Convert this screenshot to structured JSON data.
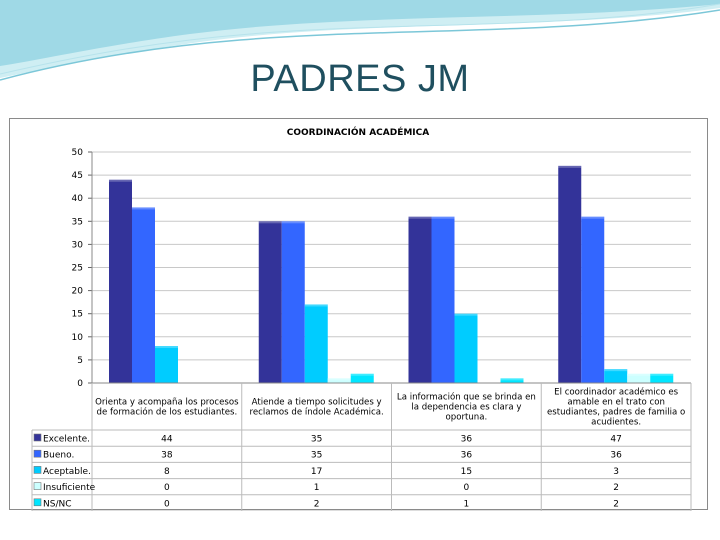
{
  "slide": {
    "title": "PADRES JM"
  },
  "chart_data": {
    "type": "bar",
    "title": "COORDINACIÓN ACADÉMICA",
    "xlabel": "",
    "ylabel": "",
    "ylim": [
      0,
      50
    ],
    "yticks": [
      0,
      5,
      10,
      15,
      20,
      25,
      30,
      35,
      40,
      45,
      50
    ],
    "grid": true,
    "legend": "data-table-left",
    "categories": [
      [
        "Orienta y acompaña los procesos",
        "de formación de los estudiantes."
      ],
      [
        "Atiende a tiempo solicitudes y",
        "reclamos de índole Académica."
      ],
      [
        "La información que se brinda en",
        "la dependencia es clara y",
        "oportuna."
      ],
      [
        "El coordinador académico es",
        "amable en el trato con",
        "estudiantes, padres de familia o",
        "acudientes."
      ]
    ],
    "series": [
      {
        "name": "Excelente.",
        "color": "#333399",
        "values": [
          44,
          35,
          36,
          47
        ]
      },
      {
        "name": "Bueno.",
        "color": "#3366ff",
        "values": [
          38,
          35,
          36,
          36
        ]
      },
      {
        "name": "Aceptable.",
        "color": "#00ccff",
        "values": [
          8,
          17,
          15,
          3
        ]
      },
      {
        "name": "Insuficiente",
        "color": "#ccffff",
        "values": [
          0,
          1,
          0,
          2
        ]
      },
      {
        "name": "NS/NC",
        "color": "#00e6ff",
        "values": [
          0,
          2,
          1,
          2
        ]
      }
    ]
  }
}
